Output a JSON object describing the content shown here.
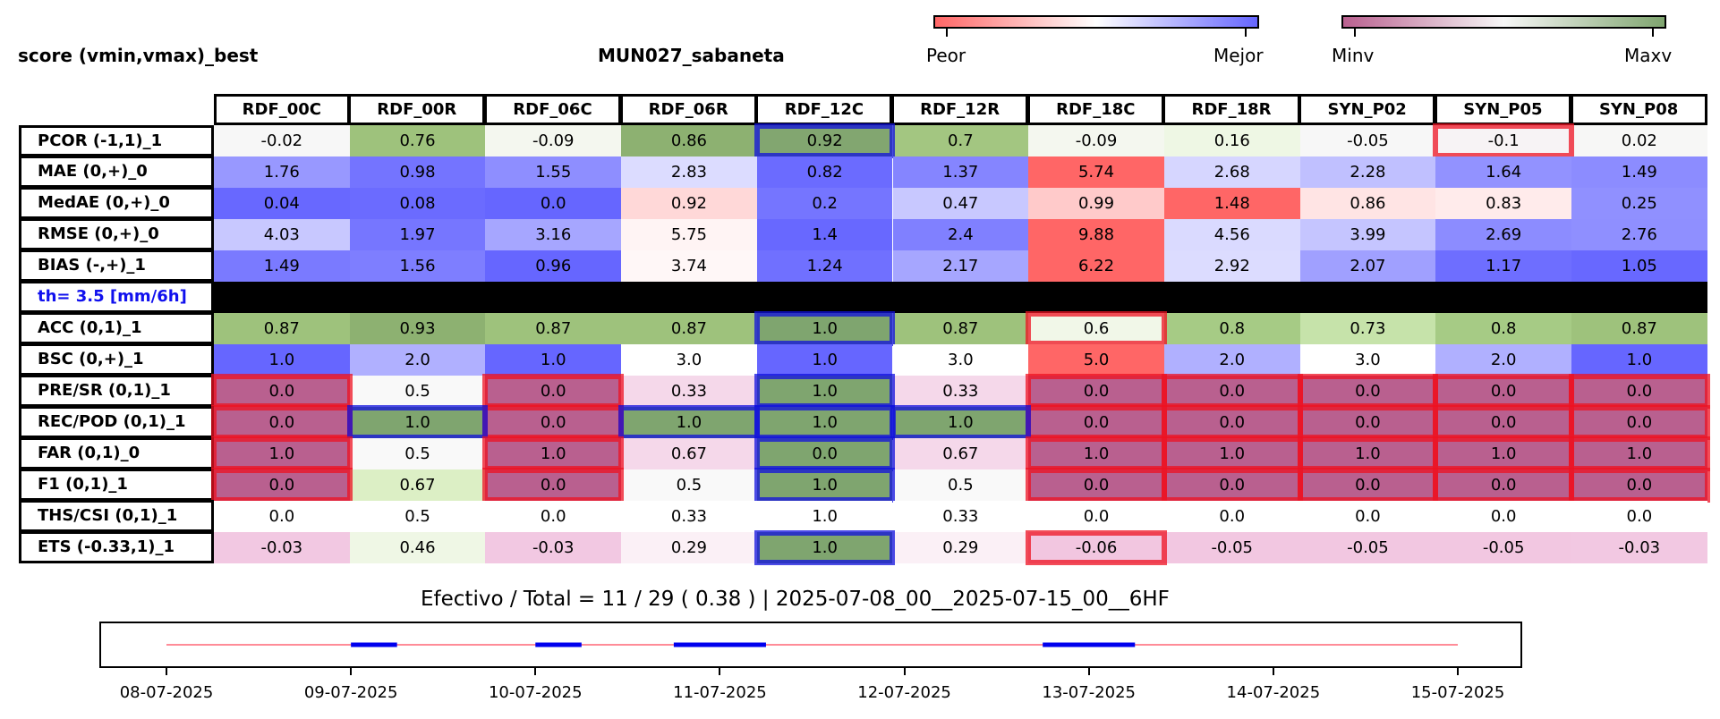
{
  "header": {
    "left_title": "score (vmin,vmax)_best",
    "center_title": "MUN027_sabaneta"
  },
  "colorbar1": {
    "low_label": "Peor",
    "high_label": "Mejor",
    "low_color": "#ff6666",
    "mid_color": "#ffffff",
    "high_color": "#6666ff"
  },
  "colorbar2": {
    "low_label": "Minv",
    "high_label": "Maxv",
    "low_color": "#b9608f",
    "mid_color": "#f7f7f7",
    "high_color": "#7fa56f"
  },
  "chart_data": {
    "type": "table",
    "columns": [
      "RDF_00C",
      "RDF_00R",
      "RDF_06C",
      "RDF_06R",
      "RDF_12C",
      "RDF_12R",
      "RDF_18C",
      "RDF_18R",
      "SYN_P02",
      "SYN_P05",
      "SYN_P08"
    ],
    "rows": [
      {
        "label": "PCOR (-1,1)_1",
        "values": [
          "-0.02",
          "0.76",
          "-0.09",
          "0.86",
          "0.92",
          "0.7",
          "-0.09",
          "0.16",
          "-0.05",
          "-0.1",
          "0.02"
        ],
        "colors": [
          "#f7f7f7",
          "#9ec27c",
          "#f4f7ef",
          "#8db171",
          "#82a670",
          "#a3c681",
          "#f4f7ef",
          "#eef7e4",
          "#f7f7f7",
          "#f7f3f5",
          "#f7f7f6"
        ],
        "best": [
          4
        ],
        "worst": [
          9
        ]
      },
      {
        "label": "MAE (0,+)_0",
        "values": [
          "1.76",
          "0.98",
          "1.55",
          "2.83",
          "0.82",
          "1.37",
          "5.74",
          "2.68",
          "2.28",
          "1.64",
          "1.49"
        ],
        "colors": [
          "#9898ff",
          "#7474ff",
          "#8e8eff",
          "#dcdcff",
          "#6b6bff",
          "#8585ff",
          "#ff6666",
          "#d6d6ff",
          "#c0c0ff",
          "#9292ff",
          "#8c8cff"
        ],
        "best": [],
        "worst": []
      },
      {
        "label": "MedAE (0,+)_0",
        "values": [
          "0.04",
          "0.08",
          "0.0",
          "0.92",
          "0.2",
          "0.47",
          "0.99",
          "1.48",
          "0.86",
          "0.83",
          "0.25"
        ],
        "colors": [
          "#6868ff",
          "#6b6bff",
          "#6666ff",
          "#ffd8d8",
          "#7575ff",
          "#c8c8ff",
          "#ffcaca",
          "#ff6666",
          "#ffe4e4",
          "#ffebeb",
          "#9090ff"
        ],
        "best": [],
        "worst": []
      },
      {
        "label": "RMSE (0,+)_0",
        "values": [
          "4.03",
          "1.97",
          "3.16",
          "5.75",
          "1.4",
          "2.4",
          "9.88",
          "4.56",
          "3.99",
          "2.69",
          "2.76"
        ],
        "colors": [
          "#c8c8ff",
          "#7676ff",
          "#a6a6ff",
          "#fff4f4",
          "#6868ff",
          "#8080ff",
          "#ff6666",
          "#dadaff",
          "#c5c5ff",
          "#8c8cff",
          "#8f8fff"
        ],
        "best": [],
        "worst": []
      },
      {
        "label": "BIAS (-,+)_1",
        "values": [
          "1.49",
          "1.56",
          "0.96",
          "3.74",
          "1.24",
          "2.17",
          "6.22",
          "2.92",
          "2.07",
          "1.17",
          "1.05"
        ],
        "colors": [
          "#7a7aff",
          "#7e7eff",
          "#6666ff",
          "#fff7f7",
          "#7070ff",
          "#a6a6ff",
          "#ff6666",
          "#dcdcff",
          "#a0a0ff",
          "#6e6eff",
          "#6868ff"
        ],
        "best": [],
        "worst": []
      },
      {
        "label": "th= 3.5 [mm/6h]",
        "separator": true
      },
      {
        "label": "ACC (0,1)_1",
        "values": [
          "0.87",
          "0.93",
          "0.87",
          "0.87",
          "1.0",
          "0.87",
          "0.6",
          "0.8",
          "0.73",
          "0.8",
          "0.87"
        ],
        "colors": [
          "#9ec27c",
          "#8db171",
          "#9ec27c",
          "#9ec27c",
          "#7fa56f",
          "#9ec27c",
          "#f1f7e8",
          "#a6cb85",
          "#c6e3aa",
          "#a6cb85",
          "#9ec27c"
        ],
        "best": [
          4
        ],
        "worst": [
          6
        ]
      },
      {
        "label": "BSC (0,+)_1",
        "values": [
          "1.0",
          "2.0",
          "1.0",
          "3.0",
          "1.0",
          "3.0",
          "5.0",
          "2.0",
          "3.0",
          "2.0",
          "1.0"
        ],
        "colors": [
          "#6666ff",
          "#b0b0ff",
          "#6666ff",
          "#ffffff",
          "#6666ff",
          "#ffffff",
          "#ff6666",
          "#b0b0ff",
          "#ffffff",
          "#b0b0ff",
          "#6666ff"
        ],
        "best": [],
        "worst": []
      },
      {
        "label": "PRE/SR (0,1)_1",
        "values": [
          "0.0",
          "0.5",
          "0.0",
          "0.33",
          "1.0",
          "0.33",
          "0.0",
          "0.0",
          "0.0",
          "0.0",
          "0.0"
        ],
        "colors": [
          "#b9608f",
          "#f9f9f9",
          "#b9608f",
          "#f5d8ea",
          "#7fa56f",
          "#f5d8ea",
          "#b9608f",
          "#b9608f",
          "#b9608f",
          "#b9608f",
          "#b9608f"
        ],
        "best": [
          4
        ],
        "worst": [
          0,
          2,
          6,
          7,
          8,
          9,
          10
        ]
      },
      {
        "label": "REC/POD (0,1)_1",
        "values": [
          "0.0",
          "1.0",
          "0.0",
          "1.0",
          "1.0",
          "1.0",
          "0.0",
          "0.0",
          "0.0",
          "0.0",
          "0.0"
        ],
        "colors": [
          "#b9608f",
          "#7fa56f",
          "#b9608f",
          "#7fa56f",
          "#7fa56f",
          "#7fa56f",
          "#b9608f",
          "#b9608f",
          "#b9608f",
          "#b9608f",
          "#b9608f"
        ],
        "best": [
          1,
          3,
          4,
          5
        ],
        "worst": [
          0,
          2,
          6,
          7,
          8,
          9,
          10
        ]
      },
      {
        "label": "FAR (0,1)_0",
        "values": [
          "1.0",
          "0.5",
          "1.0",
          "0.67",
          "0.0",
          "0.67",
          "1.0",
          "1.0",
          "1.0",
          "1.0",
          "1.0"
        ],
        "colors": [
          "#b9608f",
          "#f9f9f9",
          "#b9608f",
          "#f5d8ea",
          "#7fa56f",
          "#f5d8ea",
          "#b9608f",
          "#b9608f",
          "#b9608f",
          "#b9608f",
          "#b9608f"
        ],
        "best": [
          4
        ],
        "worst": [
          0,
          2,
          6,
          7,
          8,
          9,
          10
        ]
      },
      {
        "label": "F1 (0,1)_1",
        "values": [
          "0.0",
          "0.67",
          "0.0",
          "0.5",
          "1.0",
          "0.5",
          "0.0",
          "0.0",
          "0.0",
          "0.0",
          "0.0"
        ],
        "colors": [
          "#b9608f",
          "#dcefc5",
          "#b9608f",
          "#f9f9f9",
          "#7fa56f",
          "#f9f9f9",
          "#b9608f",
          "#b9608f",
          "#b9608f",
          "#b9608f",
          "#b9608f"
        ],
        "best": [
          4
        ],
        "worst": [
          0,
          2,
          6,
          7,
          8,
          9,
          10
        ]
      },
      {
        "label": "THS/CSI (0,1)_1",
        "values": [
          "0.0",
          "0.5",
          "0.0",
          "0.33",
          "1.0",
          "0.33",
          "0.0",
          "0.0",
          "0.0",
          "0.0",
          "0.0"
        ],
        "colors": [
          "#ffffff",
          "#ffffff",
          "#ffffff",
          "#ffffff",
          "#ffffff",
          "#ffffff",
          "#ffffff",
          "#ffffff",
          "#ffffff",
          "#ffffff",
          "#ffffff"
        ],
        "best": [],
        "worst": []
      },
      {
        "label": "ETS (-0.33,1)_1",
        "values": [
          "-0.03",
          "0.46",
          "-0.03",
          "0.29",
          "1.0",
          "0.29",
          "-0.06",
          "-0.05",
          "-0.05",
          "-0.05",
          "-0.03"
        ],
        "colors": [
          "#f2c8e2",
          "#eff7e5",
          "#f2c8e2",
          "#fbf0f6",
          "#7fa56f",
          "#fbf0f6",
          "#f2c6e0",
          "#f2c7e1",
          "#f2c7e1",
          "#f2c7e1",
          "#f2c8e2"
        ],
        "best": [
          4
        ],
        "worst": [
          6
        ]
      }
    ],
    "best_outline_color": "#1010dd",
    "worst_outline_color": "#ee1122",
    "separator_label_color": "#1010ee"
  },
  "timeline": {
    "title": "Efectivo / Total  =  11 / 29 ( 0.38 ) | 2025-07-08_00__2025-07-15_00__6HF",
    "tick_labels": [
      "08-07-2025",
      "09-07-2025",
      "10-07-2025",
      "11-07-2025",
      "12-07-2025",
      "13-07-2025",
      "14-07-2025",
      "15-07-2025"
    ],
    "x_range_days": [
      0,
      7
    ],
    "base_line_color": "#ff6677",
    "segment_color": "#0000ee",
    "segments_days": [
      [
        1.0,
        1.25
      ],
      [
        2.0,
        2.25
      ],
      [
        2.75,
        3.25
      ],
      [
        4.75,
        5.25
      ]
    ]
  }
}
